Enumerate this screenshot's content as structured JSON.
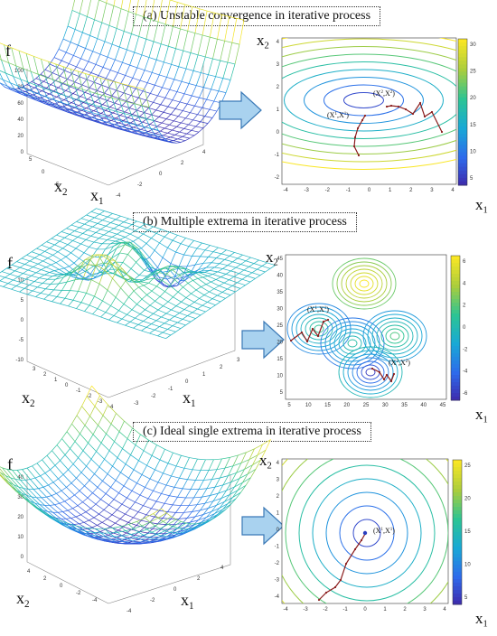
{
  "panels": [
    {
      "caption": "(a) Unstable convergence in iterative process",
      "surface": {
        "zlabel": "f",
        "x2label": "x",
        "x2sub": "2",
        "x1label": "x",
        "x1sub": "1",
        "zticks": [
          "100",
          "80",
          "60",
          "40",
          "20",
          "0"
        ],
        "x2ticks": [
          "5",
          "0",
          "-5"
        ],
        "x1ticks": [
          "-4",
          "-2",
          "0",
          "2",
          "4"
        ]
      },
      "contour": {
        "ylabel": "x",
        "ysub": "2",
        "xlabel": "x",
        "xsub": "1",
        "xticks": [
          "-4",
          "-3",
          "-2",
          "-1",
          "0",
          "1",
          "2",
          "3",
          "4"
        ],
        "yticks": [
          "4",
          "3",
          "2",
          "1",
          "0",
          "-1",
          "-2"
        ],
        "cbticks": [
          "30",
          "25",
          "20",
          "15",
          "10",
          "5"
        ],
        "annotations": [
          {
            "base": "(X",
            "sup": "1",
            "mid": ",X",
            "sup2": "1",
            "end": ")"
          },
          {
            "base": "(X",
            "sup": "2",
            "mid": ",X",
            "sup2": "2",
            "end": ")"
          }
        ]
      }
    },
    {
      "caption": "(b) Multiple extrema in iterative process",
      "surface": {
        "zlabel": "f",
        "x2label": "x",
        "x2sub": "2",
        "x1label": "x",
        "x1sub": "1",
        "zticks": [
          "10",
          "5",
          "0",
          "-5",
          "-10"
        ],
        "x2ticks": [
          "3",
          "2",
          "1",
          "0",
          "-1",
          "-2",
          "-3",
          "-4"
        ],
        "x1ticks": [
          "-3",
          "-2",
          "-1",
          "0",
          "1",
          "2",
          "3"
        ]
      },
      "contour": {
        "ylabel": "x",
        "ysub": "2",
        "xlabel": "x",
        "xsub": "1",
        "xticks": [
          "5",
          "10",
          "15",
          "20",
          "25",
          "30",
          "35",
          "40",
          "45"
        ],
        "yticks": [
          "45",
          "40",
          "35",
          "30",
          "25",
          "20",
          "15",
          "10",
          "5"
        ],
        "cbticks": [
          "6",
          "4",
          "2",
          "0",
          "-2",
          "-4",
          "-6"
        ],
        "annotations": [
          {
            "base": "(X",
            "sup": "1",
            "mid": ",X",
            "sup2": "1",
            "end": ")"
          },
          {
            "base": "(X",
            "sup": "2",
            "mid": ",X",
            "sup2": "2",
            "end": ")"
          }
        ]
      }
    },
    {
      "caption": "(c) Ideal single extrema in iterative process",
      "surface": {
        "zlabel": "f",
        "x2label": "x",
        "x2sub": "2",
        "x1label": "x",
        "x1sub": "1",
        "zticks": [
          "40",
          "30",
          "20",
          "10",
          "0"
        ],
        "x2ticks": [
          "4",
          "2",
          "0",
          "-2",
          "-4"
        ],
        "x1ticks": [
          "-4",
          "-2",
          "0",
          "2",
          "4"
        ]
      },
      "contour": {
        "ylabel": "x",
        "ysub": "2",
        "xlabel": "x",
        "xsub": "1",
        "xticks": [
          "-4",
          "-3",
          "-2",
          "-1",
          "0",
          "1",
          "2",
          "3",
          "4"
        ],
        "yticks": [
          "4",
          "3",
          "2",
          "1",
          "0",
          "-1",
          "-2",
          "-3",
          "-4"
        ],
        "cbticks": [
          "25",
          "20",
          "15",
          "10",
          "5"
        ],
        "annotations": [
          {
            "base": "(X",
            "sup": "1",
            "mid": ",X",
            "sup2": "1",
            "end": ")"
          }
        ]
      }
    }
  ],
  "colors": {
    "arrow_fill": "#a9d2ef",
    "arrow_stroke": "#3a79b6",
    "path": "#8b1d1d",
    "surface_low": "#4a3fbf",
    "surface_mid": "#2fc7b7",
    "surface_high": "#f2e24a"
  }
}
